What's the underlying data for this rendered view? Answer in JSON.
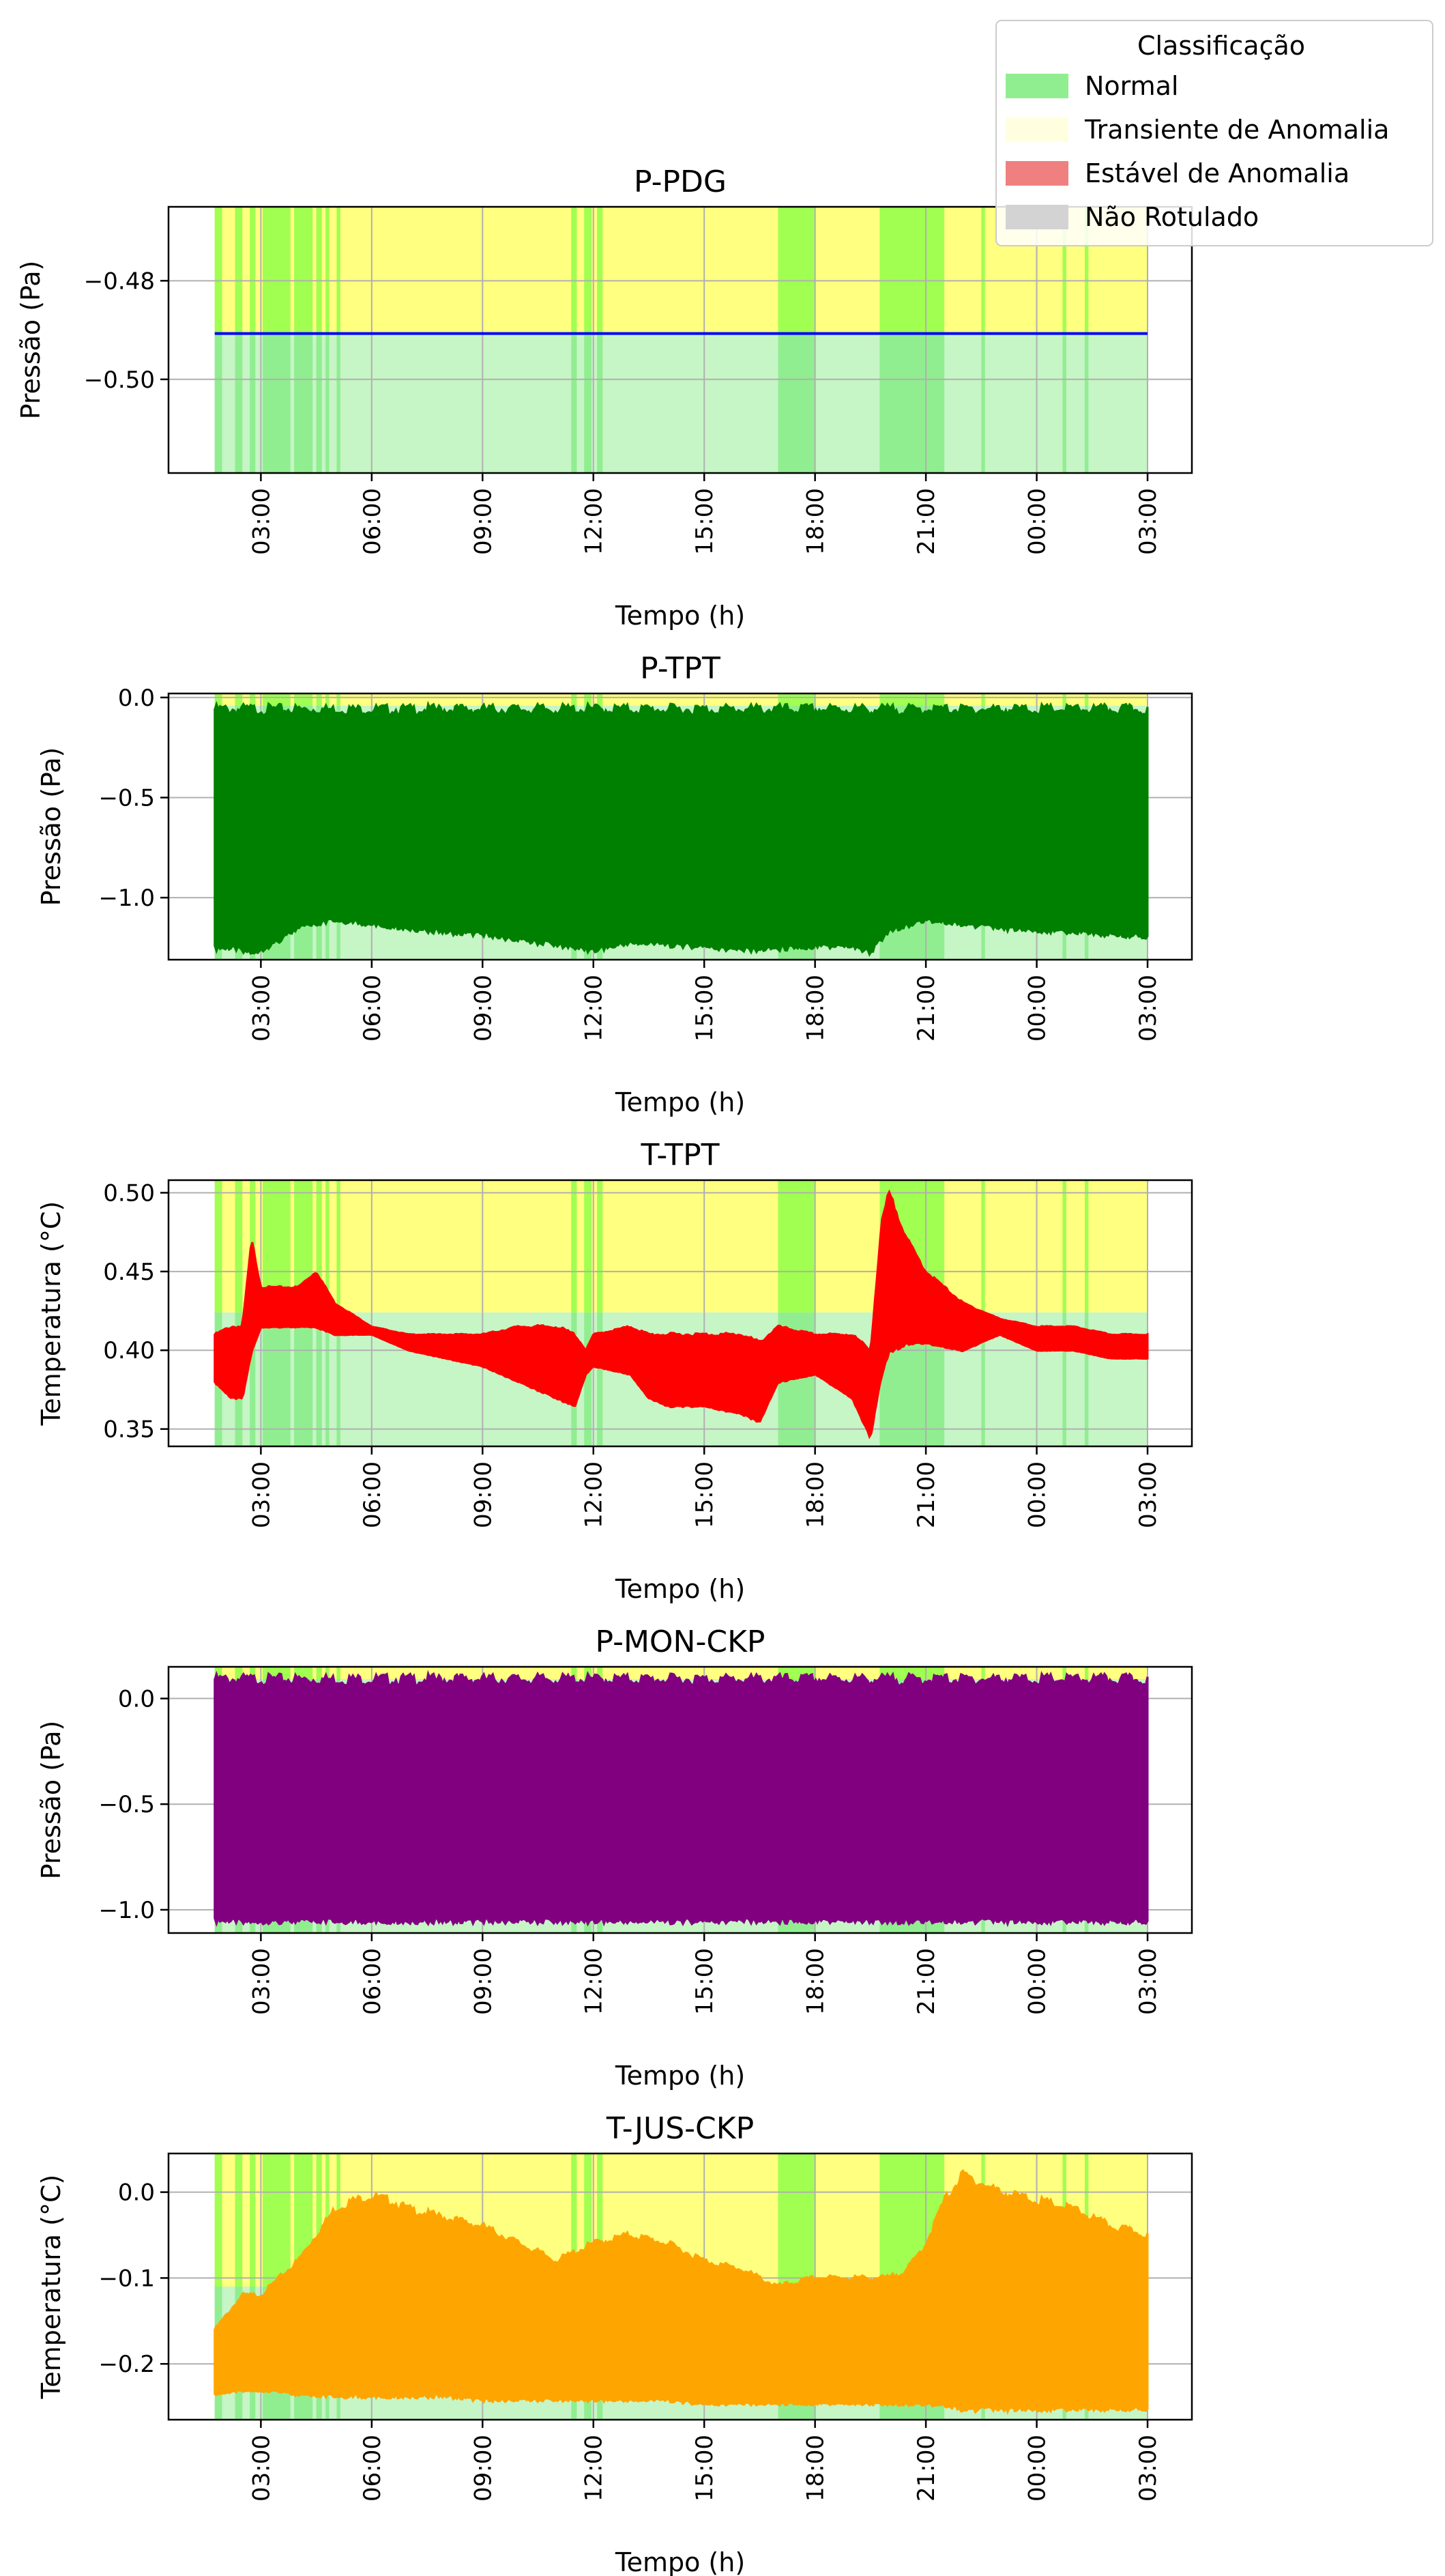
{
  "chart_data": [
    {
      "type": "area",
      "title": "P-PDG",
      "xlabel": "Tempo (h)",
      "ylabel": "Pressão (Pa)",
      "ylim": [
        -0.519,
        -0.465
      ],
      "yticks": [
        -0.5,
        -0.48
      ],
      "ytick_labels": [
        "−0.50",
        "−0.48"
      ],
      "grid": true,
      "series": [
        {
          "color": "#0000ff",
          "x": [
            1.75,
            27.0
          ],
          "min": [
            -0.4907,
            -0.4907
          ],
          "max": [
            -0.4907,
            -0.4907
          ]
        }
      ]
    },
    {
      "type": "area",
      "title": "P-TPT",
      "xlabel": "Tempo (h)",
      "ylabel": "Pressão (Pa)",
      "ylim": [
        -1.31,
        0.02
      ],
      "yticks": [
        -1.0,
        -0.5,
        0.0
      ],
      "ytick_labels": [
        "−1.0",
        "−0.5",
        "0.0"
      ],
      "grid": true,
      "series": [
        {
          "color": "#008000",
          "x": [
            1.75,
            2.3,
            2.8,
            3.3,
            4.0,
            5.0,
            6.0,
            7.0,
            8.0,
            9.0,
            10.0,
            11.0,
            12.0,
            13.0,
            14.0,
            15.0,
            16.0,
            17.0,
            18.0,
            19.0,
            19.5,
            20.0,
            21.0,
            22.0,
            23.0,
            24.0,
            25.0,
            26.0,
            27.0
          ],
          "min": [
            -1.24,
            -1.24,
            -1.26,
            -1.22,
            -1.14,
            -1.1,
            -1.12,
            -1.14,
            -1.16,
            -1.17,
            -1.2,
            -1.22,
            -1.25,
            -1.21,
            -1.22,
            -1.23,
            -1.25,
            -1.24,
            -1.23,
            -1.23,
            -1.26,
            -1.15,
            -1.1,
            -1.12,
            -1.14,
            -1.15,
            -1.16,
            -1.17,
            -1.18
          ],
          "max": [
            -0.06,
            -0.06,
            -0.06,
            -0.06,
            -0.06,
            -0.06,
            -0.06,
            -0.06,
            -0.06,
            -0.06,
            -0.06,
            -0.06,
            -0.06,
            -0.06,
            -0.06,
            -0.06,
            -0.06,
            -0.06,
            -0.06,
            -0.06,
            -0.06,
            -0.06,
            -0.06,
            -0.06,
            -0.06,
            -0.06,
            -0.06,
            -0.06,
            -0.06
          ]
        }
      ]
    },
    {
      "type": "area",
      "title": "T-TPT",
      "xlabel": "Tempo (h)",
      "ylabel": "Temperatura (°C)",
      "ylim": [
        0.339,
        0.508
      ],
      "yticks": [
        0.35,
        0.4,
        0.45,
        0.5
      ],
      "ytick_labels": [
        "0.35",
        "0.40",
        "0.45",
        "0.50"
      ],
      "grid": true,
      "series": [
        {
          "color": "#ff0000",
          "x": [
            1.75,
            2.2,
            2.5,
            2.75,
            3.0,
            3.5,
            4.0,
            4.5,
            5.0,
            6.0,
            7.0,
            8.0,
            9.0,
            10.0,
            11.0,
            11.5,
            11.8,
            12.0,
            13.0,
            13.5,
            14.0,
            15.0,
            16.0,
            16.5,
            17.0,
            18.0,
            19.0,
            19.5,
            19.8,
            20.0,
            20.5,
            21.0,
            22.0,
            23.0,
            24.0,
            25.0,
            26.0,
            27.0
          ],
          "min": [
            0.38,
            0.37,
            0.37,
            0.4,
            0.415,
            0.415,
            0.415,
            0.415,
            0.41,
            0.41,
            0.4,
            0.395,
            0.39,
            0.38,
            0.37,
            0.365,
            0.385,
            0.39,
            0.385,
            0.37,
            0.365,
            0.365,
            0.36,
            0.355,
            0.38,
            0.385,
            0.37,
            0.345,
            0.385,
            0.4,
            0.405,
            0.405,
            0.4,
            0.41,
            0.4,
            0.4,
            0.395,
            0.395
          ],
          "max": [
            0.41,
            0.415,
            0.415,
            0.47,
            0.44,
            0.44,
            0.44,
            0.45,
            0.43,
            0.415,
            0.41,
            0.41,
            0.41,
            0.415,
            0.415,
            0.41,
            0.4,
            0.41,
            0.415,
            0.41,
            0.41,
            0.41,
            0.41,
            0.405,
            0.415,
            0.41,
            0.41,
            0.4,
            0.48,
            0.5,
            0.47,
            0.45,
            0.43,
            0.42,
            0.415,
            0.415,
            0.41,
            0.41
          ]
        }
      ]
    },
    {
      "type": "area",
      "title": "P-MON-CKP",
      "xlabel": "Tempo (h)",
      "ylabel": "Pressão (Pa)",
      "ylim": [
        -1.11,
        0.15
      ],
      "yticks": [
        -1.0,
        -0.5,
        0.0
      ],
      "ytick_labels": [
        "−1.0",
        "−0.5",
        "0.0"
      ],
      "grid": true,
      "series": [
        {
          "color": "#800080",
          "x": [
            1.75,
            27.0
          ],
          "min": [
            -1.04,
            -1.04
          ],
          "max": [
            0.09,
            0.09
          ]
        }
      ]
    },
    {
      "type": "area",
      "title": "T-JUS-CKP",
      "xlabel": "Tempo (h)",
      "ylabel": "Temperatura (°C)",
      "ylim": [
        -0.265,
        0.045
      ],
      "yticks": [
        -0.2,
        -0.1,
        0.0
      ],
      "ytick_labels": [
        "−0.2",
        "−0.1",
        "0.0"
      ],
      "grid": true,
      "series": [
        {
          "color": "#ffa500",
          "x": [
            1.75,
            2.5,
            3.0,
            3.5,
            4.0,
            4.5,
            5.0,
            5.5,
            6.0,
            6.5,
            7.0,
            8.0,
            9.0,
            10.0,
            11.0,
            12.0,
            13.0,
            14.0,
            15.0,
            16.0,
            17.0,
            18.0,
            19.0,
            20.0,
            20.5,
            21.0,
            21.5,
            22.0,
            23.0,
            24.0,
            25.0,
            26.0,
            27.0
          ],
          "min": [
            -0.235,
            -0.23,
            -0.23,
            -0.23,
            -0.235,
            -0.235,
            -0.235,
            -0.235,
            -0.235,
            -0.235,
            -0.235,
            -0.235,
            -0.24,
            -0.24,
            -0.24,
            -0.24,
            -0.24,
            -0.24,
            -0.245,
            -0.245,
            -0.245,
            -0.245,
            -0.245,
            -0.245,
            -0.245,
            -0.245,
            -0.245,
            -0.25,
            -0.25,
            -0.25,
            -0.25,
            -0.25,
            -0.25
          ],
          "max": [
            -0.16,
            -0.12,
            -0.12,
            -0.1,
            -0.08,
            -0.05,
            -0.02,
            -0.01,
            -0.005,
            -0.01,
            -0.02,
            -0.03,
            -0.04,
            -0.06,
            -0.08,
            -0.06,
            -0.05,
            -0.06,
            -0.08,
            -0.09,
            -0.11,
            -0.1,
            -0.1,
            -0.1,
            -0.09,
            -0.06,
            -0.01,
            0.02,
            0.0,
            -0.01,
            -0.02,
            -0.04,
            -0.05
          ]
        }
      ]
    }
  ],
  "x_axis": {
    "range": [
      0.5,
      28.2
    ],
    "ticks": [
      3,
      6,
      9,
      12,
      15,
      18,
      21,
      24,
      27
    ],
    "tick_labels": [
      "03:00",
      "06:00",
      "09:00",
      "12:00",
      "15:00",
      "18:00",
      "21:00",
      "00:00",
      "03:00"
    ]
  },
  "classification_bands": {
    "x_range": [
      1.75,
      27.0
    ],
    "green_intervals": [
      [
        1.75,
        1.95
      ],
      [
        2.3,
        2.5
      ],
      [
        2.7,
        2.85
      ],
      [
        3.05,
        3.8
      ],
      [
        3.9,
        4.4
      ],
      [
        4.5,
        4.65
      ],
      [
        4.75,
        4.85
      ],
      [
        5.05,
        5.15
      ],
      [
        11.4,
        11.55
      ],
      [
        11.75,
        11.95
      ],
      [
        12.1,
        12.25
      ],
      [
        17.0,
        18.0
      ],
      [
        19.75,
        21.5
      ],
      [
        22.5,
        22.6
      ],
      [
        24.7,
        24.8
      ],
      [
        25.3,
        25.4
      ]
    ]
  },
  "legend": {
    "title": "Classificação",
    "placement": "top-right",
    "entries": [
      {
        "label": "Normal",
        "color": "#90ee90"
      },
      {
        "label": "Transiente de Anomalia",
        "color": "#ffffe0"
      },
      {
        "label": "Estável de Anomalia",
        "color": "#f08080"
      },
      {
        "label": "Não Rotulado",
        "color": "#d3d3d3"
      }
    ]
  },
  "colors": {
    "band_transient": "#ffff80",
    "band_normal_lower": "#c6f5c6",
    "band_normal_upper": "#a0ff50",
    "band_normal_mixed": "#90ee90"
  }
}
